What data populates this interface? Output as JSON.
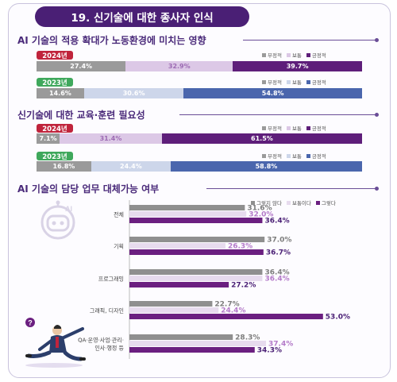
{
  "title": "19. 신기술에 대한 종사자 인식",
  "sections": {
    "impact_title": "AI 기술의 적용 확대가 노동환경에 미치는 영향",
    "training_title": "신기술에 대한 교육·훈련 필요성",
    "replace_title": "AI 기술의 담당 업무 대체가능 여부"
  },
  "legend3": {
    "negative": "부정적",
    "neutral": "보통",
    "positive": "긍정적"
  },
  "legend_replace": {
    "no": "그렇지 않다",
    "neutral": "보통이다",
    "yes": "그렇다"
  },
  "colors": {
    "title_bg": "#4a1f75",
    "badge_2024": "#c0243c",
    "badge_2023": "#3fa85c",
    "negative": "#9a9a9a",
    "neutral_2024": "#dcc8e6",
    "positive_2024": "#5e1e7a",
    "neutral_2023": "#cdd6ea",
    "positive_2023": "#4a66ad",
    "replace_no": "#8f8f8f",
    "replace_neutral": "#e7dbee",
    "replace_yes": "#6b1f80"
  },
  "chart_data": [
    {
      "type": "bar",
      "stacked": true,
      "title": "AI 기술의 적용 확대가 노동환경에 미치는 영향",
      "categories": [
        "2024년",
        "2023년"
      ],
      "series": [
        {
          "name": "부정적",
          "values": [
            27.4,
            14.6
          ]
        },
        {
          "name": "보통",
          "values": [
            32.9,
            30.6
          ]
        },
        {
          "name": "긍정적",
          "values": [
            39.7,
            54.8
          ]
        }
      ],
      "labels": [
        [
          "27.4%",
          "32.9%",
          "39.7%"
        ],
        [
          "14.6%",
          "30.6%",
          "54.8%"
        ]
      ]
    },
    {
      "type": "bar",
      "stacked": true,
      "title": "신기술에 대한 교육·훈련 필요성",
      "categories": [
        "2024년",
        "2023년"
      ],
      "series": [
        {
          "name": "부정적",
          "values": [
            7.1,
            16.8
          ]
        },
        {
          "name": "보통",
          "values": [
            31.4,
            24.4
          ]
        },
        {
          "name": "긍정적",
          "values": [
            61.5,
            58.8
          ]
        }
      ],
      "labels": [
        [
          "7.1%",
          "31.4%",
          "61.5%"
        ],
        [
          "16.8%",
          "24.4%",
          "58.8%"
        ]
      ]
    },
    {
      "type": "bar",
      "title": "AI 기술의 담당 업무 대체가능 여부",
      "categories": [
        "전체",
        "기획",
        "프로그래밍",
        "그래픽, 디자인",
        "QA·운영·사업·관리·인사·행정 등"
      ],
      "series": [
        {
          "name": "그렇지 않다",
          "values": [
            31.6,
            37.0,
            36.4,
            22.7,
            28.3
          ]
        },
        {
          "name": "보통이다",
          "values": [
            32.0,
            26.3,
            36.4,
            24.4,
            37.4
          ]
        },
        {
          "name": "그렇다",
          "values": [
            36.4,
            36.7,
            27.2,
            53.0,
            34.3
          ]
        }
      ],
      "labels": [
        [
          "31.6%",
          "32.0%",
          "36.4%"
        ],
        [
          "37.0%",
          "26.3%",
          "36.7%"
        ],
        [
          "36.4%",
          "36.4%",
          "27.2%"
        ],
        [
          "22.7%",
          "24.4%",
          "53.0%"
        ],
        [
          "28.3%",
          "37.4%",
          "34.3%"
        ]
      ],
      "category_lines": [
        [
          "전체"
        ],
        [
          "기획"
        ],
        [
          "프로그래밍"
        ],
        [
          "그래픽, 디자인"
        ],
        [
          "QA·운영·사업·관리·",
          "인사·행정 등"
        ]
      ]
    }
  ]
}
